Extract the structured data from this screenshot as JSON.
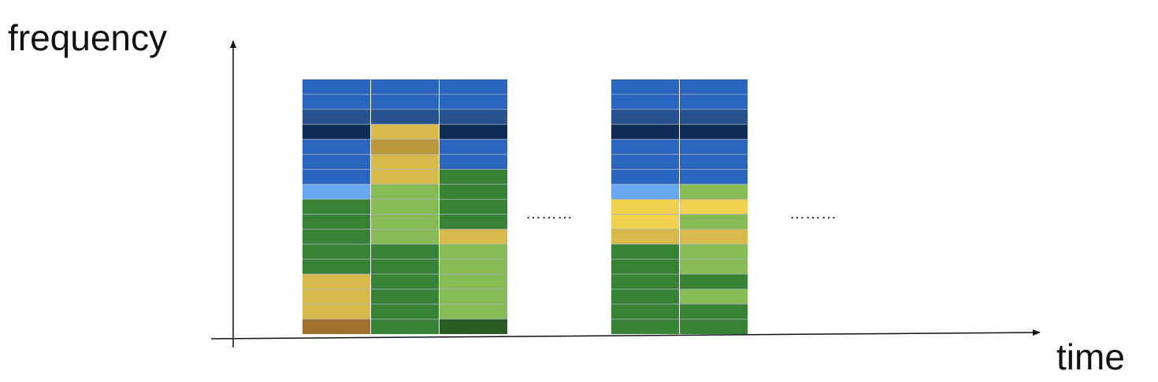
{
  "axes": {
    "y_label": "frequency",
    "x_label": "time"
  },
  "ellipsis": [
    "………",
    "………"
  ],
  "palette": {
    "blue": "#2a66c0",
    "steel_blue": "#28528f",
    "navy": "#0f2c57",
    "light_blue": "#68a7f1",
    "mustard": "#d8ba4a",
    "ochre": "#bb973b",
    "brown": "#9f702b",
    "yellow": "#efd04f",
    "green": "#378336",
    "light_green": "#86bb55",
    "dark_green": "#295c22",
    "cell_divider": "#a8b3c4",
    "column_gap": "#ffffff",
    "axis": "#111111"
  },
  "columns": [
    {
      "group": 1,
      "cells": [
        "blue",
        "blue",
        "steel_blue",
        "navy",
        "blue",
        "blue",
        "blue",
        "light_blue",
        "green",
        "green",
        "green",
        "green",
        "green",
        "mustard",
        "mustard",
        "mustard",
        "brown"
      ]
    },
    {
      "group": 1,
      "cells": [
        "blue",
        "blue",
        "steel_blue",
        "mustard",
        "ochre",
        "mustard",
        "mustard",
        "light_green",
        "light_green",
        "light_green",
        "light_green",
        "green",
        "green",
        "green",
        "green",
        "green",
        "green"
      ]
    },
    {
      "group": 1,
      "cells": [
        "blue",
        "blue",
        "steel_blue",
        "navy",
        "blue",
        "blue",
        "green",
        "green",
        "green",
        "green",
        "mustard",
        "light_green",
        "light_green",
        "light_green",
        "light_green",
        "light_green",
        "dark_green"
      ]
    },
    {
      "group": 2,
      "cells": [
        "blue",
        "blue",
        "steel_blue",
        "navy",
        "blue",
        "blue",
        "blue",
        "light_blue",
        "yellow",
        "yellow",
        "mustard",
        "green",
        "green",
        "green",
        "green",
        "green",
        "green"
      ]
    },
    {
      "group": 2,
      "cells": [
        "blue",
        "blue",
        "steel_blue",
        "navy",
        "blue",
        "blue",
        "blue",
        "light_green",
        "yellow",
        "light_green",
        "mustard",
        "light_green",
        "light_green",
        "green",
        "light_green",
        "green",
        "green"
      ]
    }
  ]
}
